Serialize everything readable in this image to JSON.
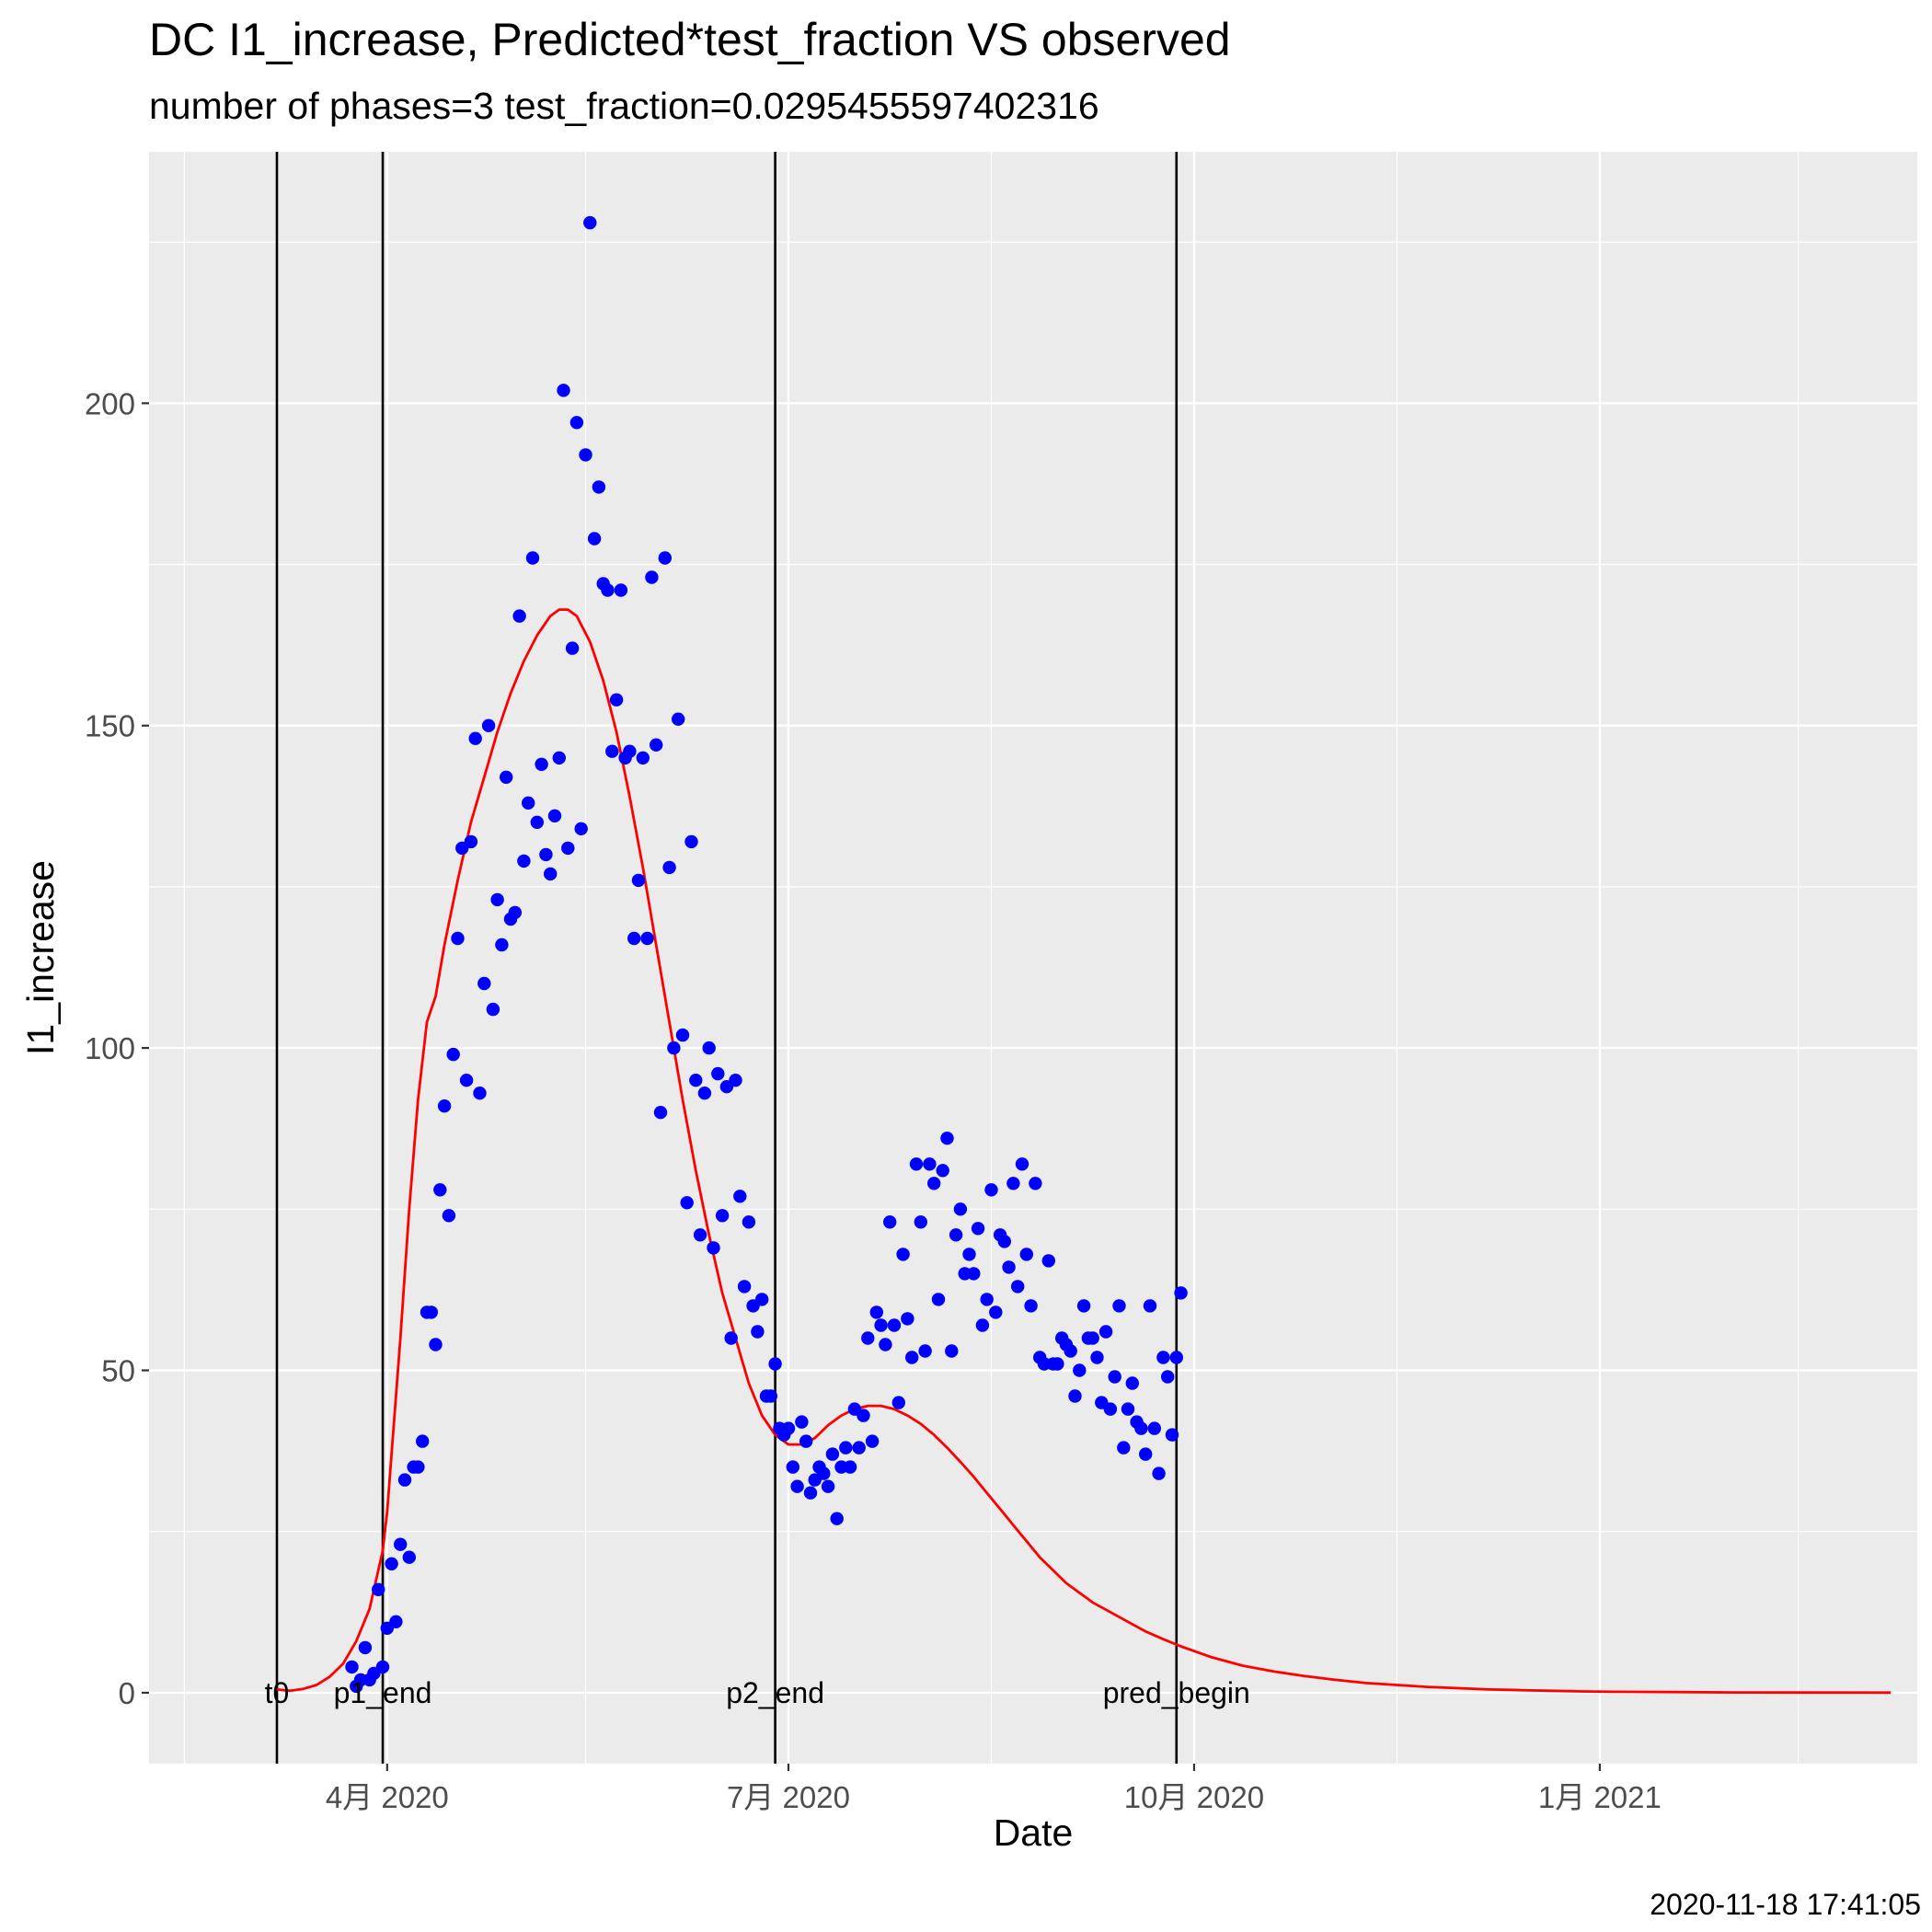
{
  "chart_data": {
    "type": "scatter",
    "title": "DC I1_increase, Predicted*test_fraction VS observed",
    "subtitle": "number of phases=3   test_fraction=0.0295455597402316",
    "xlabel": "Date",
    "ylabel": "I1_increase",
    "x_tick_labels": [
      {
        "date": "2020-04-01",
        "label": "4月 2020"
      },
      {
        "date": "2020-07-01",
        "label": "7月 2020"
      },
      {
        "date": "2020-10-01",
        "label": "10月 2020"
      },
      {
        "date": "2021-01-01",
        "label": "1月 2021"
      }
    ],
    "y_ticks": [
      0,
      50,
      100,
      150,
      200
    ],
    "xlim": [
      "2020-02-07",
      "2021-03-14"
    ],
    "ylim": [
      -11,
      239
    ],
    "grid": true,
    "vertical_lines": [
      {
        "date": "2020-03-07",
        "label": "t0"
      },
      {
        "date": "2020-03-31",
        "label": "p1_end"
      },
      {
        "date": "2020-06-28",
        "label": "p2_end"
      },
      {
        "date": "2020-09-27",
        "label": "pred_begin"
      }
    ],
    "series": [
      {
        "name": "",
        "kind": "points",
        "color": "#0000ff",
        "points": [
          [
            "2020-03-24",
            4
          ],
          [
            "2020-03-25",
            1
          ],
          [
            "2020-03-26",
            2
          ],
          [
            "2020-03-27",
            7
          ],
          [
            "2020-03-28",
            2
          ],
          [
            "2020-03-29",
            3
          ],
          [
            "2020-03-30",
            16
          ],
          [
            "2020-03-31",
            4
          ],
          [
            "2020-04-01",
            10
          ],
          [
            "2020-04-02",
            20
          ],
          [
            "2020-04-03",
            11
          ],
          [
            "2020-04-04",
            23
          ],
          [
            "2020-04-05",
            33
          ],
          [
            "2020-04-06",
            21
          ],
          [
            "2020-04-07",
            35
          ],
          [
            "2020-04-08",
            35
          ],
          [
            "2020-04-09",
            39
          ],
          [
            "2020-04-10",
            59
          ],
          [
            "2020-04-11",
            59
          ],
          [
            "2020-04-12",
            54
          ],
          [
            "2020-04-13",
            78
          ],
          [
            "2020-04-14",
            91
          ],
          [
            "2020-04-15",
            74
          ],
          [
            "2020-04-16",
            99
          ],
          [
            "2020-04-17",
            117
          ],
          [
            "2020-04-18",
            131
          ],
          [
            "2020-04-19",
            95
          ],
          [
            "2020-04-20",
            132
          ],
          [
            "2020-04-21",
            148
          ],
          [
            "2020-04-22",
            93
          ],
          [
            "2020-04-23",
            110
          ],
          [
            "2020-04-24",
            150
          ],
          [
            "2020-04-25",
            106
          ],
          [
            "2020-04-26",
            123
          ],
          [
            "2020-04-27",
            116
          ],
          [
            "2020-04-28",
            142
          ],
          [
            "2020-04-29",
            120
          ],
          [
            "2020-04-30",
            121
          ],
          [
            "2020-05-01",
            167
          ],
          [
            "2020-05-02",
            129
          ],
          [
            "2020-05-03",
            138
          ],
          [
            "2020-05-04",
            176
          ],
          [
            "2020-05-05",
            135
          ],
          [
            "2020-05-06",
            144
          ],
          [
            "2020-05-07",
            130
          ],
          [
            "2020-05-08",
            127
          ],
          [
            "2020-05-09",
            136
          ],
          [
            "2020-05-10",
            145
          ],
          [
            "2020-05-11",
            202
          ],
          [
            "2020-05-12",
            131
          ],
          [
            "2020-05-13",
            162
          ],
          [
            "2020-05-14",
            197
          ],
          [
            "2020-05-15",
            134
          ],
          [
            "2020-05-16",
            192
          ],
          [
            "2020-05-17",
            228
          ],
          [
            "2020-05-18",
            179
          ],
          [
            "2020-05-19",
            187
          ],
          [
            "2020-05-20",
            172
          ],
          [
            "2020-05-21",
            171
          ],
          [
            "2020-05-22",
            146
          ],
          [
            "2020-05-23",
            154
          ],
          [
            "2020-05-24",
            171
          ],
          [
            "2020-05-25",
            145
          ],
          [
            "2020-05-26",
            146
          ],
          [
            "2020-05-27",
            117
          ],
          [
            "2020-05-28",
            126
          ],
          [
            "2020-05-29",
            145
          ],
          [
            "2020-05-30",
            117
          ],
          [
            "2020-05-31",
            173
          ],
          [
            "2020-06-01",
            147
          ],
          [
            "2020-06-02",
            90
          ],
          [
            "2020-06-03",
            176
          ],
          [
            "2020-06-04",
            128
          ],
          [
            "2020-06-05",
            100
          ],
          [
            "2020-06-06",
            151
          ],
          [
            "2020-06-07",
            102
          ],
          [
            "2020-06-08",
            76
          ],
          [
            "2020-06-09",
            132
          ],
          [
            "2020-06-10",
            95
          ],
          [
            "2020-06-11",
            71
          ],
          [
            "2020-06-12",
            93
          ],
          [
            "2020-06-13",
            100
          ],
          [
            "2020-06-14",
            69
          ],
          [
            "2020-06-15",
            96
          ],
          [
            "2020-06-16",
            74
          ],
          [
            "2020-06-17",
            94
          ],
          [
            "2020-06-18",
            55
          ],
          [
            "2020-06-19",
            95
          ],
          [
            "2020-06-20",
            77
          ],
          [
            "2020-06-21",
            63
          ],
          [
            "2020-06-22",
            73
          ],
          [
            "2020-06-23",
            60
          ],
          [
            "2020-06-24",
            56
          ],
          [
            "2020-06-25",
            61
          ],
          [
            "2020-06-26",
            46
          ],
          [
            "2020-06-27",
            46
          ],
          [
            "2020-06-28",
            51
          ],
          [
            "2020-06-29",
            41
          ],
          [
            "2020-06-30",
            40
          ],
          [
            "2020-07-01",
            41
          ],
          [
            "2020-07-02",
            35
          ],
          [
            "2020-07-03",
            32
          ],
          [
            "2020-07-04",
            42
          ],
          [
            "2020-07-05",
            39
          ],
          [
            "2020-07-06",
            31
          ],
          [
            "2020-07-07",
            33
          ],
          [
            "2020-07-08",
            35
          ],
          [
            "2020-07-09",
            34
          ],
          [
            "2020-07-10",
            32
          ],
          [
            "2020-07-11",
            37
          ],
          [
            "2020-07-12",
            27
          ],
          [
            "2020-07-13",
            35
          ],
          [
            "2020-07-14",
            38
          ],
          [
            "2020-07-15",
            35
          ],
          [
            "2020-07-16",
            44
          ],
          [
            "2020-07-17",
            38
          ],
          [
            "2020-07-18",
            43
          ],
          [
            "2020-07-19",
            55
          ],
          [
            "2020-07-20",
            39
          ],
          [
            "2020-07-21",
            59
          ],
          [
            "2020-07-22",
            57
          ],
          [
            "2020-07-23",
            54
          ],
          [
            "2020-07-24",
            73
          ],
          [
            "2020-07-25",
            57
          ],
          [
            "2020-07-26",
            45
          ],
          [
            "2020-07-27",
            68
          ],
          [
            "2020-07-28",
            58
          ],
          [
            "2020-07-29",
            52
          ],
          [
            "2020-07-30",
            82
          ],
          [
            "2020-07-31",
            73
          ],
          [
            "2020-08-01",
            53
          ],
          [
            "2020-08-02",
            82
          ],
          [
            "2020-08-03",
            79
          ],
          [
            "2020-08-04",
            61
          ],
          [
            "2020-08-05",
            81
          ],
          [
            "2020-08-06",
            86
          ],
          [
            "2020-08-07",
            53
          ],
          [
            "2020-08-08",
            71
          ],
          [
            "2020-08-09",
            75
          ],
          [
            "2020-08-10",
            65
          ],
          [
            "2020-08-11",
            68
          ],
          [
            "2020-08-12",
            65
          ],
          [
            "2020-08-13",
            72
          ],
          [
            "2020-08-14",
            57
          ],
          [
            "2020-08-15",
            61
          ],
          [
            "2020-08-16",
            78
          ],
          [
            "2020-08-17",
            59
          ],
          [
            "2020-08-18",
            71
          ],
          [
            "2020-08-19",
            70
          ],
          [
            "2020-08-20",
            66
          ],
          [
            "2020-08-21",
            79
          ],
          [
            "2020-08-22",
            63
          ],
          [
            "2020-08-23",
            82
          ],
          [
            "2020-08-24",
            68
          ],
          [
            "2020-08-25",
            60
          ],
          [
            "2020-08-26",
            79
          ],
          [
            "2020-08-27",
            52
          ],
          [
            "2020-08-28",
            51
          ],
          [
            "2020-08-29",
            67
          ],
          [
            "2020-08-30",
            51
          ],
          [
            "2020-08-31",
            51
          ],
          [
            "2020-09-01",
            55
          ],
          [
            "2020-09-02",
            54
          ],
          [
            "2020-09-03",
            53
          ],
          [
            "2020-09-04",
            46
          ],
          [
            "2020-09-05",
            50
          ],
          [
            "2020-09-06",
            60
          ],
          [
            "2020-09-07",
            55
          ],
          [
            "2020-09-08",
            55
          ],
          [
            "2020-09-09",
            52
          ],
          [
            "2020-09-10",
            45
          ],
          [
            "2020-09-11",
            56
          ],
          [
            "2020-09-12",
            44
          ],
          [
            "2020-09-13",
            49
          ],
          [
            "2020-09-14",
            60
          ],
          [
            "2020-09-15",
            38
          ],
          [
            "2020-09-16",
            44
          ],
          [
            "2020-09-17",
            48
          ],
          [
            "2020-09-18",
            42
          ],
          [
            "2020-09-19",
            41
          ],
          [
            "2020-09-20",
            37
          ],
          [
            "2020-09-21",
            60
          ],
          [
            "2020-09-22",
            41
          ],
          [
            "2020-09-23",
            34
          ],
          [
            "2020-09-24",
            52
          ],
          [
            "2020-09-25",
            49
          ],
          [
            "2020-09-26",
            40
          ],
          [
            "2020-09-27",
            52
          ],
          [
            "2020-09-28",
            62
          ]
        ]
      },
      {
        "name": "",
        "kind": "line",
        "color": "#ff0000",
        "points": [
          [
            "2020-03-07",
            0.5
          ],
          [
            "2020-03-10",
            0.3
          ],
          [
            "2020-03-13",
            0.6
          ],
          [
            "2020-03-16",
            1.2
          ],
          [
            "2020-03-19",
            2.5
          ],
          [
            "2020-03-22",
            4.5
          ],
          [
            "2020-03-25",
            8
          ],
          [
            "2020-03-28",
            13
          ],
          [
            "2020-03-31",
            22
          ],
          [
            "2020-04-01",
            28
          ],
          [
            "2020-04-02",
            37
          ],
          [
            "2020-04-04",
            55
          ],
          [
            "2020-04-06",
            75
          ],
          [
            "2020-04-08",
            92
          ],
          [
            "2020-04-10",
            104
          ],
          [
            "2020-04-12",
            108
          ],
          [
            "2020-04-14",
            116
          ],
          [
            "2020-04-17",
            126
          ],
          [
            "2020-04-20",
            135
          ],
          [
            "2020-04-23",
            142
          ],
          [
            "2020-04-26",
            149
          ],
          [
            "2020-04-29",
            155
          ],
          [
            "2020-05-02",
            160
          ],
          [
            "2020-05-05",
            164
          ],
          [
            "2020-05-08",
            167
          ],
          [
            "2020-05-10",
            168
          ],
          [
            "2020-05-12",
            168
          ],
          [
            "2020-05-14",
            167
          ],
          [
            "2020-05-17",
            163
          ],
          [
            "2020-05-20",
            157
          ],
          [
            "2020-05-23",
            149
          ],
          [
            "2020-05-26",
            139
          ],
          [
            "2020-05-29",
            128
          ],
          [
            "2020-06-01",
            116
          ],
          [
            "2020-06-04",
            104
          ],
          [
            "2020-06-07",
            92
          ],
          [
            "2020-06-10",
            81
          ],
          [
            "2020-06-13",
            71
          ],
          [
            "2020-06-16",
            62
          ],
          [
            "2020-06-19",
            55
          ],
          [
            "2020-06-22",
            48
          ],
          [
            "2020-06-25",
            43
          ],
          [
            "2020-06-28",
            40
          ],
          [
            "2020-07-01",
            38.5
          ],
          [
            "2020-07-04",
            38.5
          ],
          [
            "2020-07-07",
            39.5
          ],
          [
            "2020-07-10",
            41.5
          ],
          [
            "2020-07-13",
            43
          ],
          [
            "2020-07-16",
            44
          ],
          [
            "2020-07-19",
            44.5
          ],
          [
            "2020-07-22",
            44.5
          ],
          [
            "2020-07-25",
            44
          ],
          [
            "2020-07-28",
            43
          ],
          [
            "2020-07-31",
            41.7
          ],
          [
            "2020-08-03",
            40
          ],
          [
            "2020-08-06",
            38
          ],
          [
            "2020-08-09",
            35.8
          ],
          [
            "2020-08-12",
            33.5
          ],
          [
            "2020-08-15",
            31
          ],
          [
            "2020-08-18",
            28.5
          ],
          [
            "2020-08-21",
            26
          ],
          [
            "2020-08-24",
            23.5
          ],
          [
            "2020-08-27",
            21
          ],
          [
            "2020-08-30",
            19
          ],
          [
            "2020-09-02",
            17
          ],
          [
            "2020-09-05",
            15.5
          ],
          [
            "2020-09-08",
            14
          ],
          [
            "2020-09-12",
            12.5
          ],
          [
            "2020-09-16",
            11
          ],
          [
            "2020-09-20",
            9.5
          ],
          [
            "2020-09-24",
            8.3
          ],
          [
            "2020-09-28",
            7.2
          ],
          [
            "2020-10-05",
            5.5
          ],
          [
            "2020-10-12",
            4.2
          ],
          [
            "2020-10-19",
            3.3
          ],
          [
            "2020-10-26",
            2.6
          ],
          [
            "2020-11-02",
            2.0
          ],
          [
            "2020-11-09",
            1.5
          ],
          [
            "2020-11-16",
            1.2
          ],
          [
            "2020-11-23",
            0.9
          ],
          [
            "2020-11-30",
            0.7
          ],
          [
            "2020-12-07",
            0.5
          ],
          [
            "2020-12-14",
            0.4
          ],
          [
            "2020-12-21",
            0.3
          ],
          [
            "2020-12-28",
            0.2
          ],
          [
            "2021-01-04",
            0.15
          ],
          [
            "2021-01-18",
            0.1
          ],
          [
            "2021-02-01",
            0.05
          ],
          [
            "2021-02-15",
            0.03
          ],
          [
            "2021-03-08",
            0.02
          ]
        ]
      }
    ]
  },
  "footer": {
    "timestamp": "2020-11-18 17:41:05"
  }
}
